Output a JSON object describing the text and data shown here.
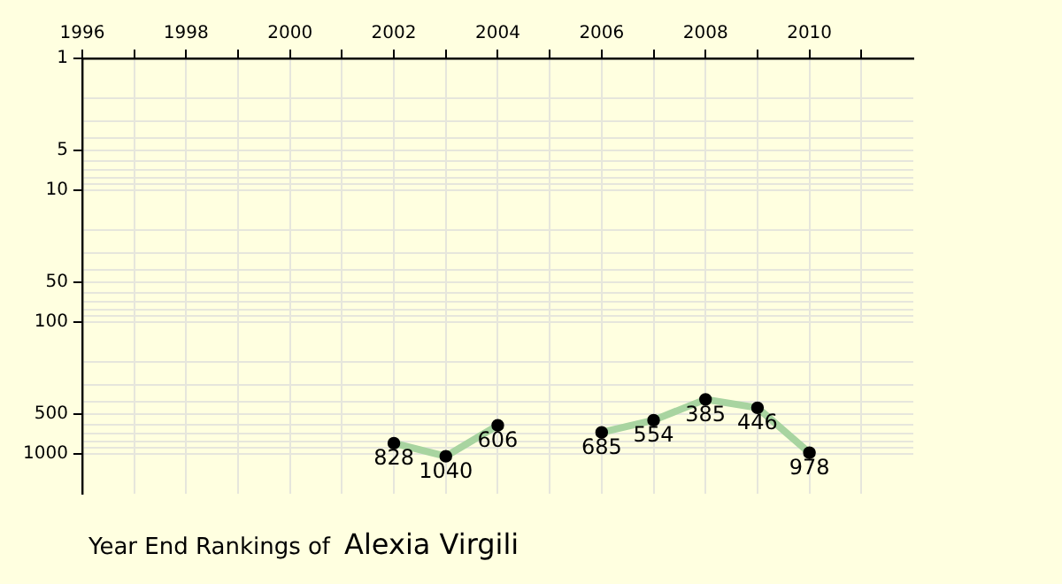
{
  "chart_data": {
    "type": "line",
    "title": "Year End Rankings of",
    "subtitle": "Alexia Virgili",
    "x": [
      2002,
      2003,
      2004,
      2005,
      2006,
      2007,
      2008,
      2009,
      2010
    ],
    "series": [
      {
        "color": "#a8d4a0",
        "values": [
          828,
          1040,
          606,
          null,
          685,
          554,
          385,
          446,
          978
        ]
      }
    ],
    "data_labels": true,
    "marker": "circle",
    "grid": true,
    "log": "y",
    "legend": false,
    "xlim": [
      1996,
      2012
    ],
    "xticks": [
      1996,
      {
        "value": 1997,
        "label": null
      },
      1998,
      {
        "value": 1999,
        "label": null
      },
      2000,
      {
        "value": 2001,
        "label": null
      },
      2002,
      {
        "value": 2003,
        "label": null
      },
      2004,
      {
        "value": 2005,
        "label": null
      },
      2006,
      {
        "value": 2007,
        "label": null
      },
      2008,
      {
        "value": 2009,
        "label": null
      },
      2010,
      {
        "value": 2011,
        "label": null
      }
    ],
    "ylim": [
      2000,
      1
    ],
    "yticks": [
      1,
      {
        "value": 2,
        "label": null
      },
      {
        "value": 3,
        "label": null
      },
      {
        "value": 4,
        "label": null
      },
      5,
      {
        "value": 6,
        "label": null
      },
      {
        "value": 7,
        "label": null
      },
      {
        "value": 8,
        "label": null
      },
      {
        "value": 9,
        "label": null
      },
      10,
      {
        "value": 20,
        "label": null
      },
      {
        "value": 30,
        "label": null
      },
      {
        "value": 40,
        "label": null
      },
      50,
      {
        "value": 60,
        "label": null
      },
      {
        "value": 70,
        "label": null
      },
      {
        "value": 80,
        "label": null
      },
      {
        "value": 90,
        "label": null
      },
      100,
      {
        "value": 200,
        "label": null
      },
      {
        "value": 300,
        "label": null
      },
      {
        "value": 400,
        "label": null
      },
      500,
      {
        "value": 600,
        "label": null
      },
      {
        "value": 700,
        "label": null
      },
      {
        "value": 800,
        "label": null
      },
      {
        "value": 900,
        "label": null
      },
      1000
    ]
  }
}
